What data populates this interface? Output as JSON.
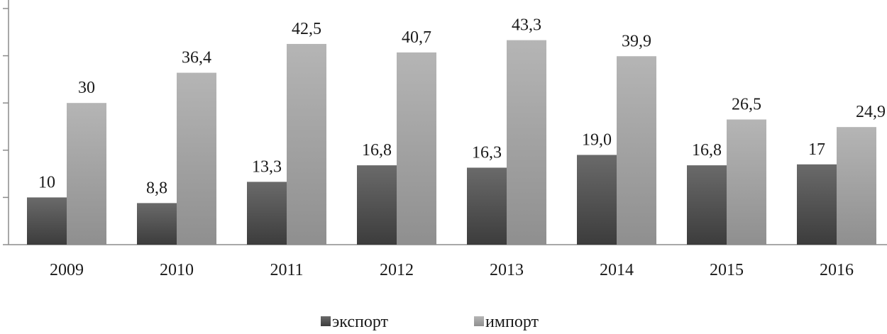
{
  "chart_data": {
    "type": "bar",
    "title": "",
    "xlabel": "",
    "ylabel": "",
    "categories": [
      "2009",
      "2010",
      "2011",
      "2012",
      "2013",
      "2014",
      "2015",
      "2016"
    ],
    "series": [
      {
        "name": "экспорт",
        "color": "#555555",
        "values": [
          10,
          8.8,
          13.3,
          16.8,
          16.3,
          19.0,
          16.8,
          17
        ],
        "labels": [
          "10",
          "8,8",
          "13,3",
          "16,8",
          "16,3",
          "19,0",
          "16,8",
          "17"
        ]
      },
      {
        "name": "импорт",
        "color": "#a3a3a3",
        "values": [
          30,
          36.4,
          42.5,
          40.7,
          43.3,
          39.9,
          26.5,
          24.9
        ],
        "labels": [
          "30",
          "36,4",
          "42,5",
          "40,7",
          "43,3",
          "39,9",
          "26,5",
          "24,9"
        ]
      }
    ],
    "ylim": [
      0,
      50
    ],
    "gridlines": false,
    "legend_position": "bottom-center"
  }
}
